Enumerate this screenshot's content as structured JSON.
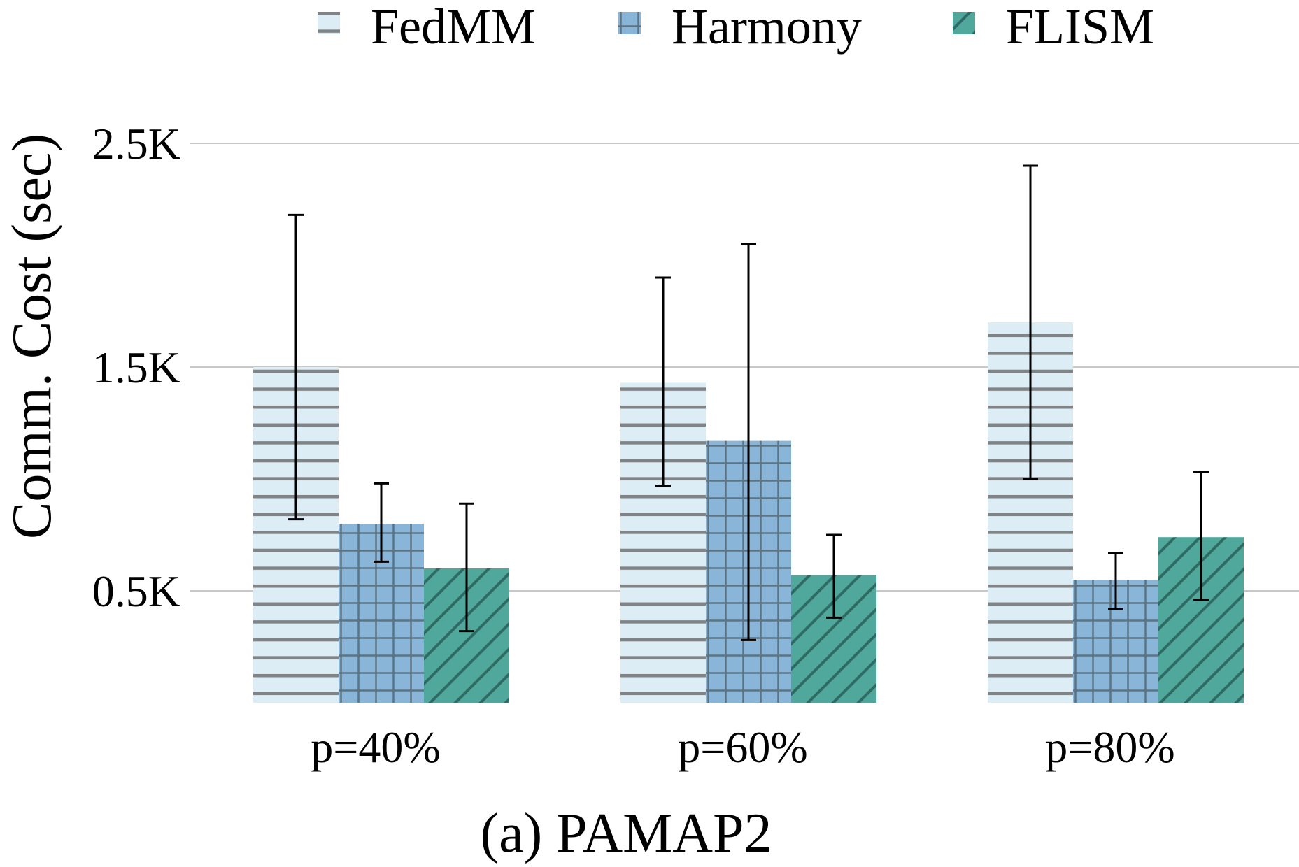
{
  "chart_data": {
    "type": "bar",
    "caption": "(a) PAMAP2",
    "xlabel": "",
    "ylabel": "Comm. Cost (sec)",
    "ylim": [
      0,
      2.5
    ],
    "y_baseline": 0,
    "yticks": [
      0.5,
      1.5,
      2.5
    ],
    "ytick_labels": [
      "0.5K",
      "1.5K",
      "2.5K"
    ],
    "grid": true,
    "legend_position": "top",
    "categories": [
      "p=40%",
      "p=60%",
      "p=80%"
    ],
    "series": [
      {
        "name": "FedMM",
        "pattern": "horizontal-lines",
        "color": "#dcedf5",
        "hatch_color": "#808487",
        "values": [
          1.5,
          1.43,
          1.7
        ],
        "err_low": [
          0.82,
          0.97,
          1.0
        ],
        "err_high": [
          2.18,
          1.9,
          2.4
        ]
      },
      {
        "name": "Harmony",
        "pattern": "grid",
        "color": "#89b5d8",
        "hatch_color": "#5c7383",
        "values": [
          0.8,
          1.17,
          0.55
        ],
        "err_low": [
          0.63,
          0.28,
          0.42
        ],
        "err_high": [
          0.98,
          2.05,
          0.67
        ]
      },
      {
        "name": "FLISM",
        "pattern": "diagonal-lines",
        "color": "#50a89c",
        "hatch_color": "#2f6b63",
        "values": [
          0.6,
          0.57,
          0.74
        ],
        "err_low": [
          0.32,
          0.38,
          0.46
        ],
        "err_high": [
          0.89,
          0.75,
          1.03
        ]
      }
    ]
  }
}
